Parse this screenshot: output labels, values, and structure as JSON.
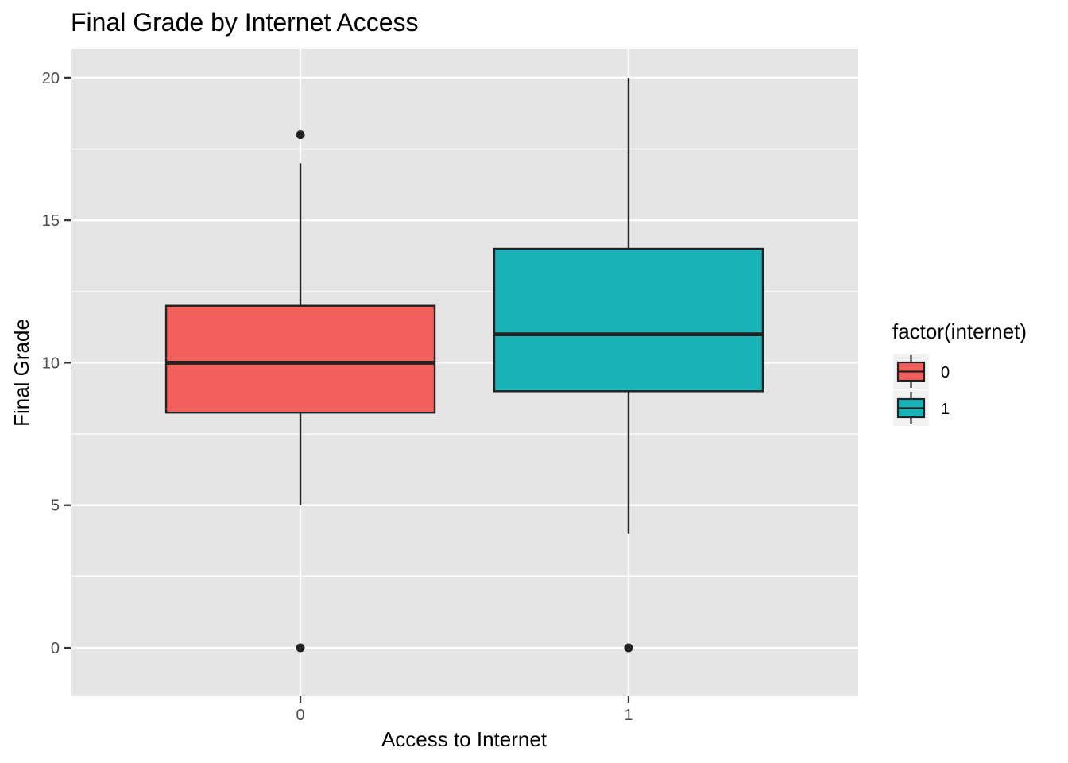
{
  "chart_data": {
    "type": "box",
    "title": "Final Grade by Internet Access",
    "xlabel": "Access to Internet",
    "ylabel": "Final Grade",
    "categories": [
      "0",
      "1"
    ],
    "ylim": [
      -1.7,
      21.0
    ],
    "y_ticks": [
      0,
      5,
      10,
      15,
      20
    ],
    "y_tick_labels": [
      "0",
      "5",
      "10",
      "15",
      "20"
    ],
    "grid": true,
    "legend": {
      "title": "factor(internet)",
      "position": "right",
      "entries": [
        {
          "label": "0",
          "color": "#F2605C"
        },
        {
          "label": "1",
          "color": "#19B2B7"
        }
      ]
    },
    "boxes": [
      {
        "category": "0",
        "whisker_low": 5,
        "q1": 8.25,
        "median": 10,
        "q3": 12,
        "whisker_high": 17,
        "outliers": [
          18,
          0
        ],
        "color": "#F2605C"
      },
      {
        "category": "1",
        "whisker_low": 4,
        "q1": 9,
        "median": 11,
        "q3": 14,
        "whisker_high": 20,
        "outliers": [
          0
        ],
        "color": "#19B2B7"
      }
    ]
  },
  "colors": {
    "panel_background": "#E5E5E5",
    "grid_major": "#FFFFFF",
    "outline": "#222222"
  }
}
